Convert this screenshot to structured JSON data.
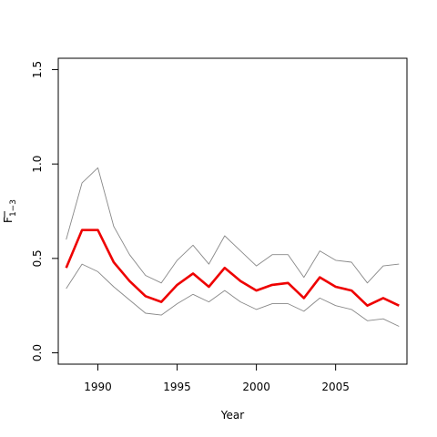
{
  "chart_data": {
    "type": "line",
    "xlabel": "Year",
    "ylabel_main": "F",
    "ylabel_sub": "1−3",
    "xlim": [
      1987.5,
      2009.5
    ],
    "ylim": [
      -0.06,
      1.56
    ],
    "x_ticks": [
      1990,
      1995,
      2000,
      2005
    ],
    "y_ticks": [
      0.0,
      0.5,
      1.0,
      1.5
    ],
    "y_tick_labels": [
      "0.0",
      "0.5",
      "1.0",
      "1.5"
    ],
    "grid": false,
    "x": [
      1988,
      1989,
      1990,
      1991,
      1992,
      1993,
      1994,
      1995,
      1996,
      1997,
      1998,
      1999,
      2000,
      2001,
      2002,
      2003,
      2004,
      2005,
      2006,
      2007,
      2008,
      2009
    ],
    "series": [
      {
        "role": "upper",
        "color": "#888888",
        "values": [
          0.6,
          0.9,
          0.98,
          0.67,
          0.52,
          0.41,
          0.37,
          0.49,
          0.57,
          0.47,
          0.62,
          0.54,
          0.46,
          0.52,
          0.52,
          0.4,
          0.54,
          0.49,
          0.48,
          0.37,
          0.46,
          0.47
        ]
      },
      {
        "role": "estimate",
        "color": "#ee0000",
        "values": [
          0.45,
          0.65,
          0.65,
          0.48,
          0.38,
          0.3,
          0.27,
          0.36,
          0.42,
          0.35,
          0.45,
          0.38,
          0.33,
          0.36,
          0.37,
          0.29,
          0.4,
          0.35,
          0.33,
          0.25,
          0.29,
          0.25
        ]
      },
      {
        "role": "lower",
        "color": "#888888",
        "values": [
          0.34,
          0.47,
          0.43,
          0.35,
          0.28,
          0.21,
          0.2,
          0.26,
          0.31,
          0.27,
          0.33,
          0.27,
          0.23,
          0.26,
          0.26,
          0.22,
          0.29,
          0.25,
          0.23,
          0.17,
          0.18,
          0.14
        ]
      }
    ]
  }
}
